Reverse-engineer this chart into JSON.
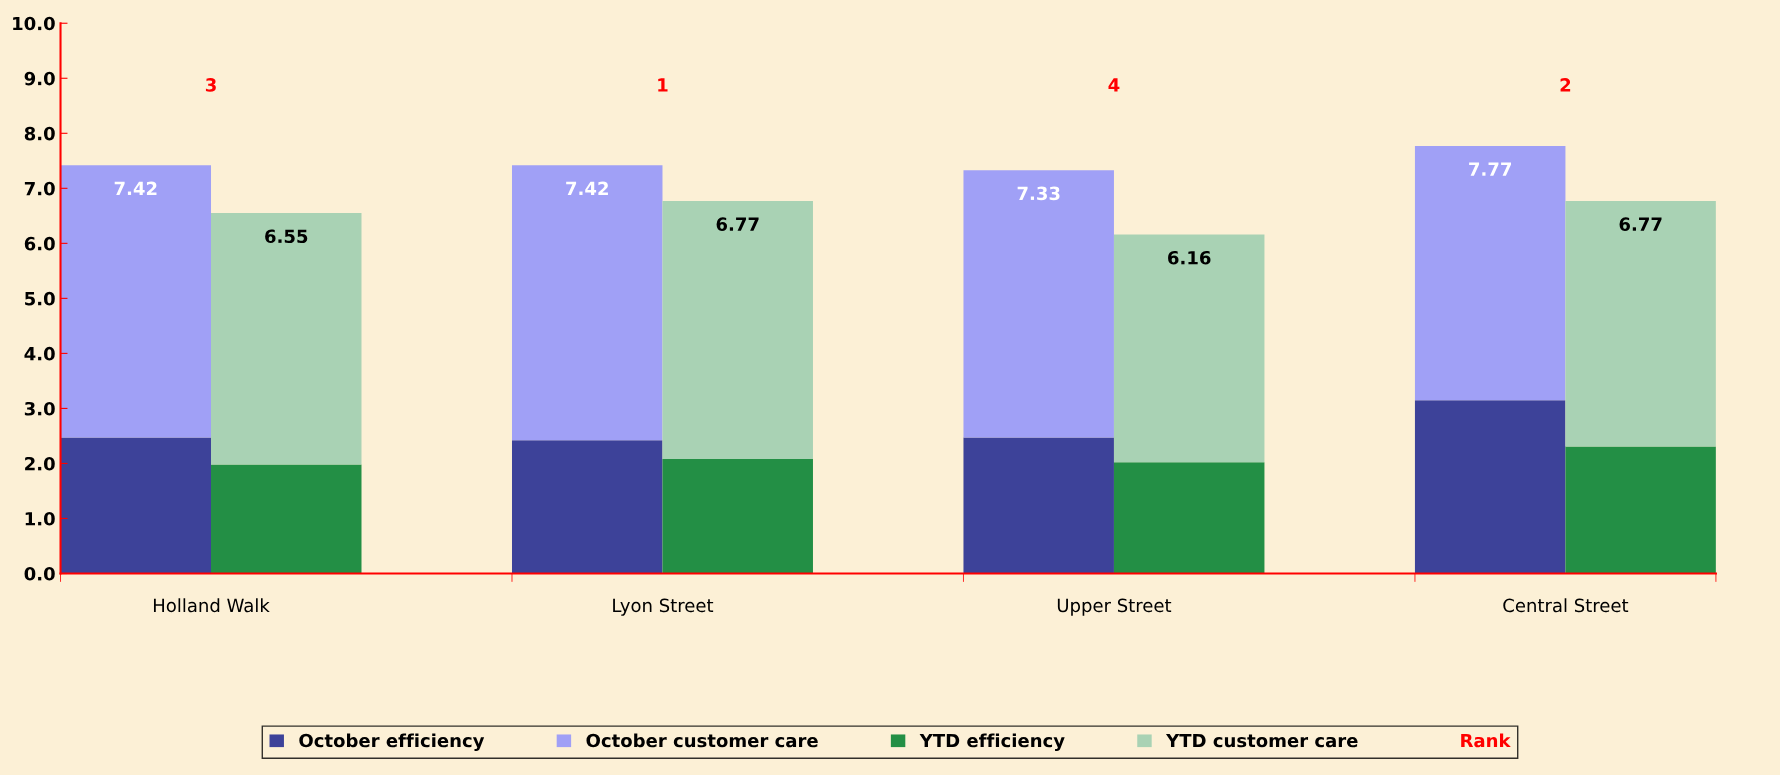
{
  "chart_data": {
    "type": "bar",
    "stacked": true,
    "categories": [
      null,
      null,
      null,
      null,
      null,
      null,
      null,
      null,
      null,
      null,
      null
    ],
    "ylim": [
      0,
      10
    ],
    "yticks": [
      {
        "value": 0,
        "label": "0.0"
      },
      {
        "value": 1,
        "label": "1.0"
      },
      {
        "value": 2,
        "label": "2.0"
      },
      {
        "value": 3,
        "label": "3.0"
      },
      {
        "value": 4,
        "label": "4.0"
      },
      {
        "value": 5,
        "label": "5.0"
      },
      {
        "value": 6,
        "label": "6.0"
      },
      {
        "value": 7,
        "label": "7.0"
      },
      {
        "value": 8,
        "label": "8.0"
      },
      {
        "value": 9,
        "label": "9.0"
      },
      {
        "value": 10,
        "label": "10.0"
      }
    ],
    "grid": false,
    "legend": "bottom",
    "annotations": [
      "Holland Walk",
      "Lyon Street",
      "Upper Street",
      "Central Street",
      "3",
      "1",
      "4",
      "2"
    ],
    "totals": [
      "7.42",
      "6.55",
      null,
      "7.42",
      "6.77",
      null,
      "7.33",
      "6.16",
      null,
      "7.77",
      "6.77"
    ],
    "series": [
      {
        "name": "October efficiency",
        "color": "#3d4299",
        "values": [
          2.47,
          null,
          null,
          2.42,
          null,
          null,
          2.47,
          null,
          null,
          3.15,
          null
        ]
      },
      {
        "name": "October customer care",
        "color": "#a0a0f6",
        "values": [
          4.95,
          null,
          null,
          5.0,
          null,
          null,
          4.86,
          null,
          null,
          4.62,
          null
        ]
      },
      {
        "name": "YTD efficiency",
        "color": "#238f45",
        "values": [
          null,
          1.98,
          null,
          null,
          2.08,
          null,
          null,
          2.02,
          null,
          null,
          2.31
        ]
      },
      {
        "name": "YTD customer care",
        "color": "#a9d2b4",
        "values": [
          null,
          4.57,
          null,
          null,
          4.69,
          null,
          null,
          4.14,
          null,
          null,
          4.46
        ]
      },
      {
        "name": "Rank",
        "type": "scatter",
        "marker": "none",
        "color": "#ff0000",
        "values": [
          null,
          null,
          null,
          null,
          null,
          null,
          null,
          null,
          null,
          null,
          null
        ]
      }
    ]
  }
}
